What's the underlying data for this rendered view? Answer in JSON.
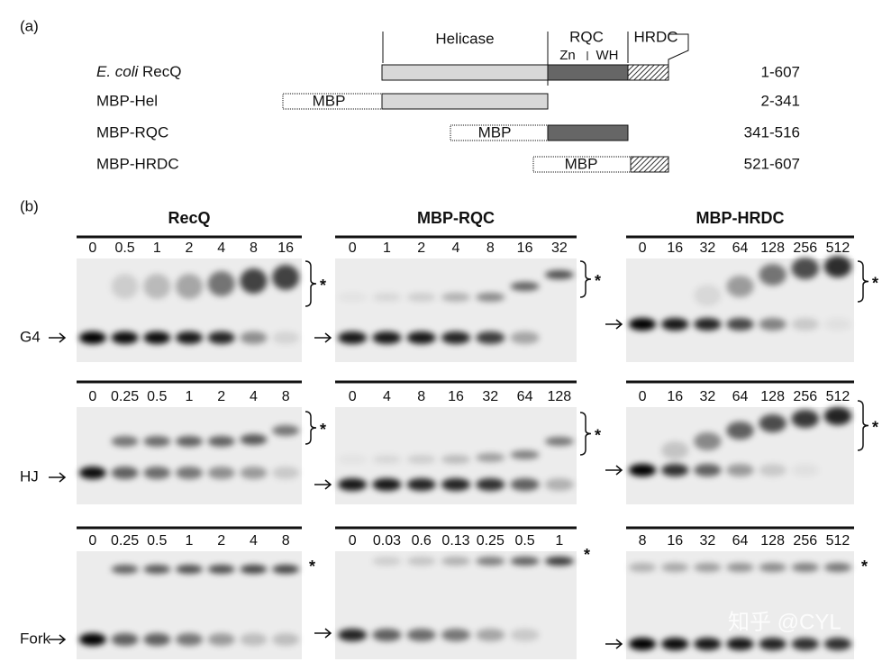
{
  "panel_a": {
    "label": "(a)",
    "domains": {
      "helicase": "Helicase",
      "rqc": "RQC",
      "zn": "Zn",
      "wh": "WH",
      "hrdc": "HRDC"
    },
    "constructs": [
      {
        "name_italic": "E. coli",
        "name": "RecQ",
        "range": "1-607"
      },
      {
        "name": "MBP-Hel",
        "tag": "MBP",
        "range": "2-341"
      },
      {
        "name": "MBP-RQC",
        "tag": "MBP",
        "range": "341-516"
      },
      {
        "name": "MBP-HRDC",
        "tag": "MBP",
        "range": "521-607"
      }
    ]
  },
  "panel_b": {
    "label": "(b)",
    "asterisk": "*",
    "columns": [
      "RecQ",
      "MBP-RQC",
      "MBP-HRDC"
    ],
    "rows": [
      {
        "label": "G4",
        "lanes": [
          [
            "0",
            "0.5",
            "1",
            "2",
            "4",
            "8",
            "16"
          ],
          [
            "0",
            "1",
            "2",
            "4",
            "8",
            "16",
            "32"
          ],
          [
            "0",
            "16",
            "32",
            "64",
            "128",
            "256",
            "512"
          ]
        ]
      },
      {
        "label": "HJ",
        "lanes": [
          [
            "0",
            "0.25",
            "0.5",
            "1",
            "2",
            "4",
            "8"
          ],
          [
            "0",
            "4",
            "8",
            "16",
            "32",
            "64",
            "128"
          ],
          [
            "0",
            "16",
            "32",
            "64",
            "128",
            "256",
            "512"
          ]
        ]
      },
      {
        "label": "Fork",
        "lanes": [
          [
            "0",
            "0.25",
            "0.5",
            "1",
            "2",
            "4",
            "8"
          ],
          [
            "0",
            "0.03",
            "0.6",
            "0.13",
            "0.25",
            "0.5",
            "1"
          ],
          [
            "8",
            "16",
            "32",
            "64",
            "128",
            "256",
            "512"
          ]
        ]
      }
    ]
  },
  "watermark": "知乎 @CYL"
}
